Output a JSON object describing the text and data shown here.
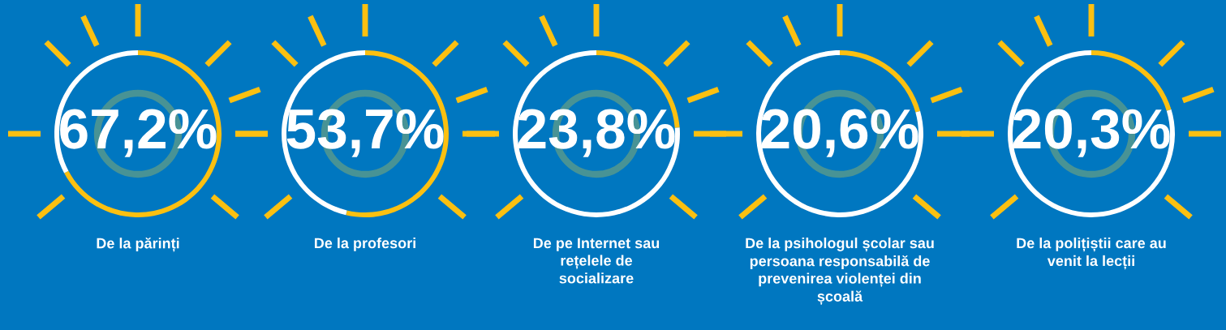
{
  "chart_data": [
    {
      "type": "donut",
      "title": "De la părinți",
      "categories": [
        null,
        null
      ],
      "values": [
        67.2,
        32.8
      ],
      "colors": [
        "#fcc010",
        "#ffffff"
      ],
      "value_labels": [
        "67,2%",
        null
      ]
    },
    {
      "type": "donut",
      "title": "De la profesori",
      "categories": [
        null,
        null
      ],
      "values": [
        53.7,
        46.3
      ],
      "colors": [
        "#fcc010",
        "#ffffff"
      ],
      "value_labels": [
        "53,7%",
        null
      ]
    },
    {
      "type": "donut",
      "title": "De pe Internet sau\nrețelele de\nsocializare",
      "categories": [
        null,
        null
      ],
      "values": [
        23.8,
        76.2
      ],
      "colors": [
        "#fcc010",
        "#ffffff"
      ],
      "value_labels": [
        "23,8%",
        null
      ]
    },
    {
      "type": "donut",
      "title": "De la psihologul școlar sau\npersoana responsabilă de\nprevenirea violenței din\nșcoală",
      "categories": [
        null,
        null
      ],
      "values": [
        20.6,
        79.4
      ],
      "colors": [
        "#fcc010",
        "#ffffff"
      ],
      "value_labels": [
        "20,6%",
        null
      ]
    },
    {
      "type": "donut",
      "title": "De la polițiștii care au\nvenit la lecții",
      "categories": [
        null,
        null
      ],
      "values": [
        20.3,
        79.7
      ],
      "colors": [
        "#fcc010",
        "#ffffff"
      ],
      "value_labels": [
        "20,3%",
        null
      ]
    }
  ]
}
